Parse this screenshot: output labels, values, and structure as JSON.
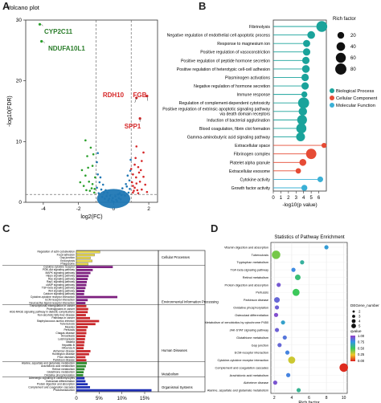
{
  "panels": {
    "a": "A",
    "b": "B",
    "c": "C",
    "d": "D"
  },
  "chart_data": [
    {
      "type": "scatter",
      "title": "Volcano plot",
      "xlabel": "log2(FC)",
      "ylabel": "-log10(FDR)",
      "xlim": [
        -5,
        2.5
      ],
      "ylim": [
        0,
        30
      ],
      "xticks": [
        -4,
        -2,
        0,
        2
      ],
      "yticks": [
        0,
        10,
        20,
        30
      ],
      "thresholds": {
        "x": [
          -1,
          1
        ],
        "y": 1.3
      },
      "colors": {
        "down": "#2aa02b",
        "up": "#d62728",
        "ns": "#1f77b4"
      },
      "labeled_points": [
        {
          "label": "CYP2C11",
          "x": -4.2,
          "y": 29.3,
          "group": "down"
        },
        {
          "label": "NDUFA10L1",
          "x": -4.1,
          "y": 26.5,
          "group": "down"
        },
        {
          "label": "RDH10",
          "x": 1.3,
          "y": 17.2,
          "group": "up"
        },
        {
          "label": "FGB",
          "x": 1.9,
          "y": 17.5,
          "group": "up"
        },
        {
          "label": "SPP1",
          "x": 1.5,
          "y": 13.8,
          "group": "up"
        }
      ],
      "cloud": {
        "up": [
          [
            1.1,
            1.6
          ],
          [
            1.2,
            2.4
          ],
          [
            1.3,
            3.1
          ],
          [
            1.5,
            3.4
          ],
          [
            1.7,
            4.2
          ],
          [
            1.4,
            5.8
          ],
          [
            1.25,
            7.3
          ],
          [
            1.1,
            4.6
          ],
          [
            1.6,
            2.1
          ],
          [
            1.8,
            2.9
          ],
          [
            1.35,
            2.0
          ],
          [
            1.05,
            3.3
          ],
          [
            1.45,
            4.9
          ],
          [
            1.2,
            6.2
          ],
          [
            1.9,
            1.7
          ],
          [
            1.55,
            5.3
          ],
          [
            1.15,
            1.9
          ],
          [
            1.3,
            9.2
          ],
          [
            1.7,
            8.2
          ],
          [
            1.0,
            5.5
          ],
          [
            1.4,
            1.5
          ],
          [
            1.6,
            6.8
          ],
          [
            1.1,
            2.7
          ],
          [
            1.28,
            4.1
          ]
        ],
        "down": [
          [
            -1.1,
            1.6
          ],
          [
            -1.25,
            2.3
          ],
          [
            -1.4,
            3.4
          ],
          [
            -1.6,
            4.4
          ],
          [
            -1.2,
            6.0
          ],
          [
            -1.5,
            7.6
          ],
          [
            -1.8,
            5.3
          ],
          [
            -1.3,
            9.0
          ],
          [
            -1.05,
            4.1
          ],
          [
            -1.7,
            2.7
          ],
          [
            -1.35,
            1.9
          ],
          [
            -1.15,
            7.9
          ],
          [
            -1.9,
            3.3
          ],
          [
            -1.45,
            5.7
          ],
          [
            -1.6,
            10.2
          ],
          [
            -1.2,
            3.0
          ],
          [
            -1.08,
            2.2
          ],
          [
            -1.55,
            2.0
          ]
        ],
        "ns": [
          [
            -0.9,
            4.6
          ],
          [
            -0.8,
            3.3
          ],
          [
            -0.7,
            2.1
          ],
          [
            -0.55,
            1.6
          ],
          [
            -0.4,
            1.0
          ],
          [
            -0.25,
            0.6
          ],
          [
            -0.1,
            0.3
          ],
          [
            0.0,
            0.1
          ],
          [
            0.15,
            0.4
          ],
          [
            0.3,
            0.7
          ],
          [
            0.45,
            1.2
          ],
          [
            0.6,
            1.7
          ],
          [
            0.75,
            2.6
          ],
          [
            0.9,
            3.6
          ],
          [
            -0.95,
            6.6
          ],
          [
            0.95,
            5.2
          ],
          [
            -0.85,
            1.5
          ],
          [
            -0.65,
            0.9
          ],
          [
            -0.5,
            0.6
          ],
          [
            -0.3,
            0.3
          ],
          [
            0.2,
            0.2
          ],
          [
            0.4,
            0.5
          ],
          [
            0.65,
            1.1
          ],
          [
            0.85,
            1.6
          ],
          [
            -0.75,
            4.1
          ],
          [
            0.8,
            4.4
          ],
          [
            -0.6,
            2.9
          ],
          [
            0.7,
            3.0
          ],
          [
            -0.95,
            2.4
          ],
          [
            0.92,
            2.2
          ],
          [
            -0.45,
            2.0
          ],
          [
            0.5,
            2.3
          ],
          [
            -0.2,
            1.1
          ],
          [
            0.1,
            1.0
          ],
          [
            -0.35,
            1.6
          ],
          [
            0.35,
            1.5
          ],
          [
            -0.9,
            8.1
          ],
          [
            0.97,
            7.0
          ],
          [
            -0.05,
            0.7
          ],
          [
            0.25,
            1.3
          ]
        ]
      }
    },
    {
      "type": "scatter",
      "subtype": "dot-enrichment",
      "xlabel": "-log10(p value)",
      "xticks": [
        0,
        1,
        2,
        3,
        4,
        5,
        6
      ],
      "xlim": [
        0,
        7
      ],
      "size_legend": {
        "title": "Rich factor",
        "values": [
          20,
          40,
          60,
          80
        ]
      },
      "categories": [
        {
          "name": "Biological Process",
          "color": "#1aa39b"
        },
        {
          "name": "Cellular Component",
          "color": "#e64b35"
        },
        {
          "name": "Molecular Function",
          "color": "#3bb0d6"
        }
      ],
      "terms": [
        {
          "label": "Fibrinolysis",
          "x": 6.4,
          "rich": 75,
          "cat": 0
        },
        {
          "label": "Negative regulation of endothelial cell apoptotic process",
          "x": 5.0,
          "rich": 30,
          "cat": 0
        },
        {
          "label": "Response to magnesium ion",
          "x": 4.4,
          "rich": 24,
          "cat": 0
        },
        {
          "label": "Positive regulation of vasoconstriction",
          "x": 4.4,
          "rich": 26,
          "cat": 0
        },
        {
          "label": "Positive regulation of peptide hormone secretion",
          "x": 4.3,
          "rich": 26,
          "cat": 0
        },
        {
          "label": "Positive regulation of heterotypic cell-cell adhesion",
          "x": 4.3,
          "rich": 30,
          "cat": 0
        },
        {
          "label": "Plasminogen activations",
          "x": 4.2,
          "rich": 26,
          "cat": 0
        },
        {
          "label": "Negative regulation of hormone secretion",
          "x": 4.2,
          "rich": 26,
          "cat": 0
        },
        {
          "label": "Immune response",
          "x": 4.1,
          "rich": 14,
          "cat": 0
        },
        {
          "label": "Regulation of complement-dependent cytotoxicity",
          "x": 4.0,
          "rich": 78,
          "cat": 0
        },
        {
          "label": "Positive regulation of extrinsic apoptotic signaling pathway via death domain receptors",
          "x": 3.9,
          "rich": 38,
          "cat": 0
        },
        {
          "label": "Induction of bacterial agglutination",
          "x": 3.8,
          "rich": 58,
          "cat": 0
        },
        {
          "label": "Blood coagulation, fibrin clot formation",
          "x": 3.7,
          "rich": 62,
          "cat": 0
        },
        {
          "label": "Gamma-aminobutyric acid signaling pathway",
          "x": 3.6,
          "rich": 44,
          "cat": 0
        },
        {
          "label": "Extracellular space",
          "x": 6.7,
          "rich": 8,
          "cat": 1
        },
        {
          "label": "Fibrinogen complex",
          "x": 5.0,
          "rich": 66,
          "cat": 1
        },
        {
          "label": "Platelet alpha granule",
          "x": 3.9,
          "rich": 22,
          "cat": 1
        },
        {
          "label": "Extracellular exosome",
          "x": 3.3,
          "rich": 10,
          "cat": 1
        },
        {
          "label": "Cytokine activity",
          "x": 6.2,
          "rich": 12,
          "cat": 2
        },
        {
          "label": "Growth factor activity",
          "x": 4.1,
          "rich": 14,
          "cat": 2
        }
      ]
    },
    {
      "type": "bar",
      "orientation": "horizontal",
      "xticks": [
        "0",
        "5%",
        "10%",
        "15%"
      ],
      "xlim": [
        0,
        18
      ],
      "groups": [
        {
          "name": "Cellular Processes",
          "color": "#e8d84a"
        },
        {
          "name": "Environmental Information Processing",
          "color": "#7c1e7e"
        },
        {
          "name": "Human Diseases",
          "color": "#c8262a"
        },
        {
          "name": "Metabolism",
          "color": "#2e8b2e"
        },
        {
          "name": "Organismal Systems",
          "color": "#1f2fb5"
        }
      ],
      "bars": [
        {
          "label": "Regulation of actin cytoskeleton",
          "value": 5.2,
          "g": 0
        },
        {
          "label": "Focal adhesion",
          "value": 4.0,
          "g": 0
        },
        {
          "label": "Gap junction",
          "value": 3.1,
          "g": 0
        },
        {
          "label": "Endocytosis",
          "value": 3.5,
          "g": 0
        },
        {
          "label": "Phagosome",
          "value": 2.6,
          "g": 0
        },
        {
          "label": "Cytokine-cytokine receptor",
          "value": 8.0,
          "g": 1
        },
        {
          "label": "PI3K-Akt signaling pathway",
          "value": 3.6,
          "g": 1
        },
        {
          "label": "MAPK signaling pathway",
          "value": 3.1,
          "g": 1
        },
        {
          "label": "Hippo signaling pathway",
          "value": 2.7,
          "g": 1
        },
        {
          "label": "Ras signaling pathway",
          "value": 2.5,
          "g": 1
        },
        {
          "label": "Rap1 signaling pathway",
          "value": 2.3,
          "g": 1
        },
        {
          "label": "cAMP signaling pathway",
          "value": 2.2,
          "g": 1
        },
        {
          "label": "TGF-beta signaling pathway",
          "value": 2.0,
          "g": 1
        },
        {
          "label": "Wnt signaling pathway",
          "value": 1.8,
          "g": 1
        },
        {
          "label": "Calcium signaling pathway",
          "value": 1.7,
          "g": 1
        },
        {
          "label": "Cytokine-cytokine receptor interaction",
          "value": 9.0,
          "g": 1
        },
        {
          "label": "ECM-receptor interaction",
          "value": 2.5,
          "g": 1
        },
        {
          "label": "Neuroactive ligand-receptor interaction",
          "value": 2.0,
          "g": 1
        },
        {
          "label": "Transcriptional misregulation in cancer",
          "value": 2.2,
          "g": 2
        },
        {
          "label": "Proteoglycans in cancer",
          "value": 2.6,
          "g": 2
        },
        {
          "label": "AGE-RAGE signaling pathway in diabetic complications",
          "value": 2.5,
          "g": 2
        },
        {
          "label": "Non-alcoholic fatty liver disease",
          "value": 2.1,
          "g": 2
        },
        {
          "label": "Pathways in cancer",
          "value": 3.0,
          "g": 2
        },
        {
          "label": "Staphylococcus aureus infection",
          "value": 5.0,
          "g": 2
        },
        {
          "label": "Tuberculosis",
          "value": 4.2,
          "g": 2
        },
        {
          "label": "Measles",
          "value": 2.5,
          "g": 2
        },
        {
          "label": "Pertussis",
          "value": 2.2,
          "g": 2
        },
        {
          "label": "Chagas disease",
          "value": 2.2,
          "g": 2
        },
        {
          "label": "Amoebiasis",
          "value": 2.0,
          "g": 2
        },
        {
          "label": "Leishmaniasis",
          "value": 1.9,
          "g": 2
        },
        {
          "label": "Malaria",
          "value": 1.8,
          "g": 2
        },
        {
          "label": "Hepatitis B",
          "value": 1.7,
          "g": 2
        },
        {
          "label": "Influenza A",
          "value": 1.6,
          "g": 2
        },
        {
          "label": "Alzheimer disease",
          "value": 3.1,
          "g": 2
        },
        {
          "label": "Huntington disease",
          "value": 2.8,
          "g": 2
        },
        {
          "label": "Prion diseases",
          "value": 2.0,
          "g": 2
        },
        {
          "label": "Parkinson disease",
          "value": 2.2,
          "g": 2
        },
        {
          "label": "Alanine, aspartate and glutamate metabolism",
          "value": 2.3,
          "g": 3
        },
        {
          "label": "Arachidonic acid metabolism",
          "value": 2.1,
          "g": 3
        },
        {
          "label": "Retinol metabolism",
          "value": 1.8,
          "g": 3
        },
        {
          "label": "Glutathione metabolism",
          "value": 1.6,
          "g": 3
        },
        {
          "label": "Oxidative phosphorylation",
          "value": 1.5,
          "g": 3
        },
        {
          "label": "Adrenergic signaling in cardiomyocytes",
          "value": 1.8,
          "g": 4
        },
        {
          "label": "Osteoclast differentiation",
          "value": 2.0,
          "g": 4
        },
        {
          "label": "Protein digestion and absorption",
          "value": 2.5,
          "g": 4
        },
        {
          "label": "Complement and coagulation cascades",
          "value": 3.0,
          "g": 4
        },
        {
          "label": "Phototransduction",
          "value": 16.5,
          "g": 4
        }
      ]
    },
    {
      "type": "scatter",
      "subtype": "kegg-enrichment",
      "title": "Statistics of Pathway Enrichment",
      "xlabel": "Rich factor",
      "xticks": [
        2,
        4,
        6,
        8,
        10
      ],
      "xlim": [
        1.6,
        10.4
      ],
      "size_legend": {
        "title": "DEGene_number",
        "values": [
          2,
          3,
          4,
          5
        ]
      },
      "color_legend": {
        "title": "qvalue",
        "ticks": [
          "1.00",
          "0.75",
          "0.50",
          "0.25",
          "0.00"
        ]
      },
      "terms": [
        {
          "label": "Vitamin digestion and absorption",
          "x": 8.0,
          "n": 2,
          "q": 0.72
        },
        {
          "label": "Tuberculosis",
          "x": 2.2,
          "n": 5,
          "q": 0.42
        },
        {
          "label": "Tryptophan metabolism",
          "x": 5.2,
          "n": 2,
          "q": 0.62
        },
        {
          "label": "TGF-beta signaling pathway",
          "x": 4.2,
          "n": 2,
          "q": 0.78
        },
        {
          "label": "Retinol metabolism",
          "x": 4.7,
          "n": 3,
          "q": 0.55
        },
        {
          "label": "Protein digestion and absorption",
          "x": 2.5,
          "n": 2,
          "q": 0.92
        },
        {
          "label": "Pertussis",
          "x": 4.5,
          "n": 4,
          "q": 0.5
        },
        {
          "label": "Parkinson disease",
          "x": 2.3,
          "n": 3,
          "q": 0.88
        },
        {
          "label": "Oxidative phosphorylation",
          "x": 2.3,
          "n": 2,
          "q": 0.9
        },
        {
          "label": "Osteoclast differentiation",
          "x": 2.2,
          "n": 2,
          "q": 0.95
        },
        {
          "label": "Metabolism of xenobiotics by cytochrome P450",
          "x": 3.0,
          "n": 2,
          "q": 0.7
        },
        {
          "label": "JAK-STAT signaling pathway",
          "x": 2.3,
          "n": 2,
          "q": 0.9
        },
        {
          "label": "Glutathione metabolism",
          "x": 3.2,
          "n": 2,
          "q": 0.84
        },
        {
          "label": "Gap junction",
          "x": 2.6,
          "n": 2,
          "q": 0.88
        },
        {
          "label": "ECM-receptor interaction",
          "x": 3.5,
          "n": 2,
          "q": 0.8
        },
        {
          "label": "Cytokine-cytokine receptor interaction",
          "x": 4.0,
          "n": 4,
          "q": 0.3
        },
        {
          "label": "Complement and coagulation cascades",
          "x": 10.0,
          "n": 5,
          "q": 0.02
        },
        {
          "label": "Arachidonic acid metabolism",
          "x": 3.6,
          "n": 2,
          "q": 0.8
        },
        {
          "label": "Alzheimer disease",
          "x": 2.1,
          "n": 2,
          "q": 0.93
        },
        {
          "label": "Alanine, aspartate and glutamate metabolism",
          "x": 4.8,
          "n": 2,
          "q": 0.6
        }
      ]
    }
  ]
}
